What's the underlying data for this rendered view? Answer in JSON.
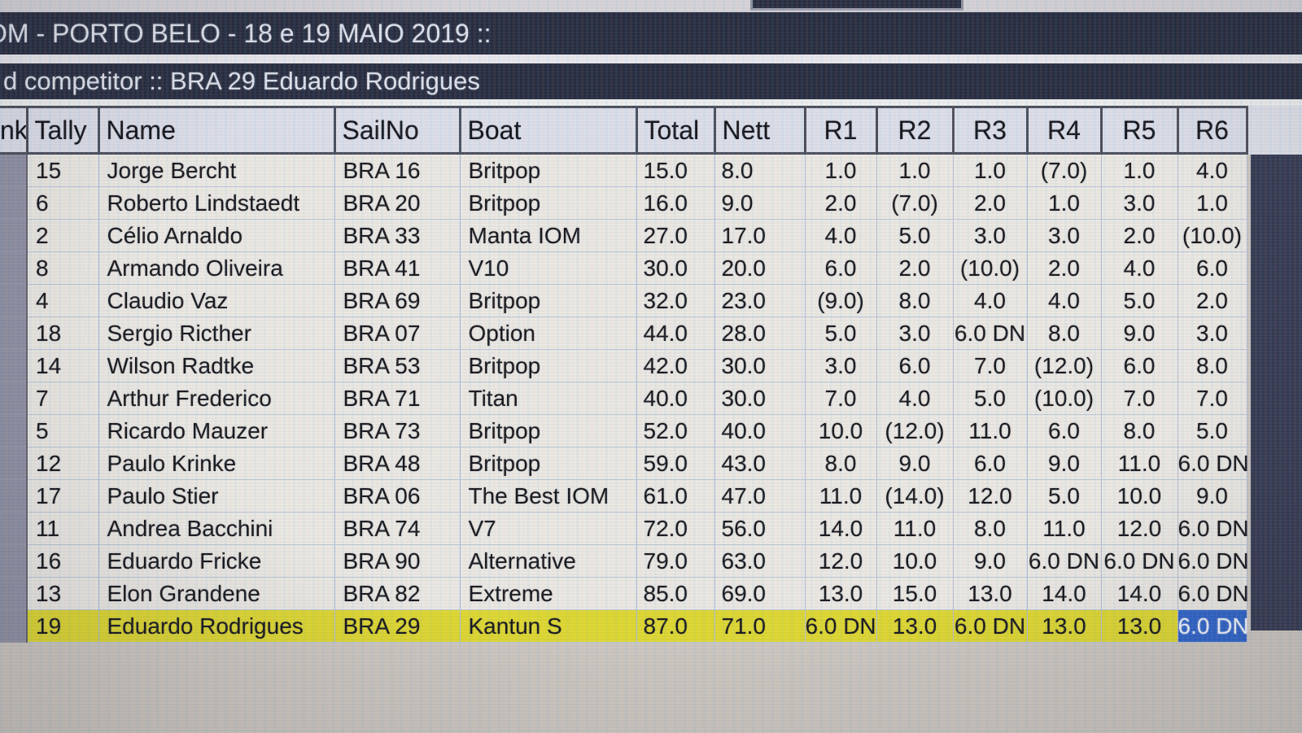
{
  "titlebar": {
    "event_title": "OM - PORTO BELO - 18 e 19 MAIO 2019 ::"
  },
  "subtitlebar": {
    "selected_competitor": "d competitor :: BRA 29 Eduardo Rodrigues"
  },
  "table": {
    "columns": [
      "nk",
      "Tally",
      "Name",
      "SailNo",
      "Boat",
      "Total",
      "Nett",
      "R1",
      "R2",
      "R3",
      "R4",
      "R5",
      "R6"
    ],
    "rows": [
      {
        "tally": "15",
        "name": "Jorge Bercht",
        "sailno": "BRA 16",
        "boat": "Britpop",
        "total": "15.0",
        "nett": "8.0",
        "races": [
          "1.0",
          "1.0",
          "1.0",
          "(7.0)",
          "1.0",
          "4.0"
        ]
      },
      {
        "tally": "6",
        "name": "Roberto Lindstaedt",
        "sailno": "BRA 20",
        "boat": "Britpop",
        "total": "16.0",
        "nett": "9.0",
        "races": [
          "2.0",
          "(7.0)",
          "2.0",
          "1.0",
          "3.0",
          "1.0"
        ]
      },
      {
        "tally": "2",
        "name": "Célio Arnaldo",
        "sailno": "BRA 33",
        "boat": "Manta IOM",
        "total": "27.0",
        "nett": "17.0",
        "races": [
          "4.0",
          "5.0",
          "3.0",
          "3.0",
          "2.0",
          "(10.0)"
        ]
      },
      {
        "tally": "8",
        "name": "Armando Oliveira",
        "sailno": "BRA 41",
        "boat": "V10",
        "total": "30.0",
        "nett": "20.0",
        "races": [
          "6.0",
          "2.0",
          "(10.0)",
          "2.0",
          "4.0",
          "6.0"
        ]
      },
      {
        "tally": "4",
        "name": "Claudio Vaz",
        "sailno": "BRA 69",
        "boat": "Britpop",
        "total": "32.0",
        "nett": "23.0",
        "races": [
          "(9.0)",
          "8.0",
          "4.0",
          "4.0",
          "5.0",
          "2.0"
        ]
      },
      {
        "tally": "18",
        "name": "Sergio Ricther",
        "sailno": "BRA 07",
        "boat": "Option",
        "total": "44.0",
        "nett": "28.0",
        "races": [
          "5.0",
          "3.0",
          "6.0 DN",
          "8.0",
          "9.0",
          "3.0"
        ]
      },
      {
        "tally": "14",
        "name": "Wilson Radtke",
        "sailno": "BRA 53",
        "boat": "Britpop",
        "total": "42.0",
        "nett": "30.0",
        "races": [
          "3.0",
          "6.0",
          "7.0",
          "(12.0)",
          "6.0",
          "8.0"
        ]
      },
      {
        "tally": "7",
        "name": "Arthur Frederico",
        "sailno": "BRA 71",
        "boat": "Titan",
        "total": "40.0",
        "nett": "30.0",
        "races": [
          "7.0",
          "4.0",
          "5.0",
          "(10.0)",
          "7.0",
          "7.0"
        ]
      },
      {
        "tally": "5",
        "name": "Ricardo Mauzer",
        "sailno": "BRA 73",
        "boat": "Britpop",
        "total": "52.0",
        "nett": "40.0",
        "races": [
          "10.0",
          "(12.0)",
          "11.0",
          "6.0",
          "8.0",
          "5.0"
        ]
      },
      {
        "tally": "12",
        "name": "Paulo Krinke",
        "sailno": "BRA 48",
        "boat": "Britpop",
        "total": "59.0",
        "nett": "43.0",
        "races": [
          "8.0",
          "9.0",
          "6.0",
          "9.0",
          "11.0",
          "6.0 DN"
        ]
      },
      {
        "tally": "17",
        "name": "Paulo Stier",
        "sailno": "BRA 06",
        "boat": "The Best IOM",
        "total": "61.0",
        "nett": "47.0",
        "races": [
          "11.0",
          "(14.0)",
          "12.0",
          "5.0",
          "10.0",
          "9.0"
        ]
      },
      {
        "tally": "11",
        "name": "Andrea Bacchini",
        "sailno": "BRA 74",
        "boat": "V7",
        "total": "72.0",
        "nett": "56.0",
        "races": [
          "14.0",
          "11.0",
          "8.0",
          "11.0",
          "12.0",
          "6.0 DN"
        ]
      },
      {
        "tally": "16",
        "name": "Eduardo Fricke",
        "sailno": "BRA 90",
        "boat": "Alternative",
        "total": "79.0",
        "nett": "63.0",
        "races": [
          "12.0",
          "10.0",
          "9.0",
          "6.0 DN",
          "6.0 DN",
          "6.0 DN"
        ]
      },
      {
        "tally": "13",
        "name": "Elon Grandene",
        "sailno": "BRA 82",
        "boat": "Extreme",
        "total": "85.0",
        "nett": "69.0",
        "races": [
          "13.0",
          "15.0",
          "13.0",
          "14.0",
          "14.0",
          "6.0 DN"
        ]
      },
      {
        "tally": "19",
        "name": "Eduardo Rodrigues",
        "sailno": "BRA 29",
        "boat": "Kantun S",
        "total": "87.0",
        "nett": "71.0",
        "races": [
          "6.0 DN",
          "13.0",
          "6.0 DN",
          "13.0",
          "13.0",
          "6.0 DN"
        ]
      }
    ],
    "highlighted_row_index": 14,
    "selected_cell": {
      "row_index": 14,
      "column": "R6",
      "value": "6.0 DN"
    }
  },
  "colors": {
    "titlebar_bg": "#252b3d",
    "header_bg": "#dbdee8",
    "cell_bg": "#eae8e2",
    "highlight_yellow": "#ddd72e",
    "selection_blue": "#2d62c6",
    "rank_column_gray": "#8d8fa1",
    "right_filler_navy": "#343950"
  }
}
